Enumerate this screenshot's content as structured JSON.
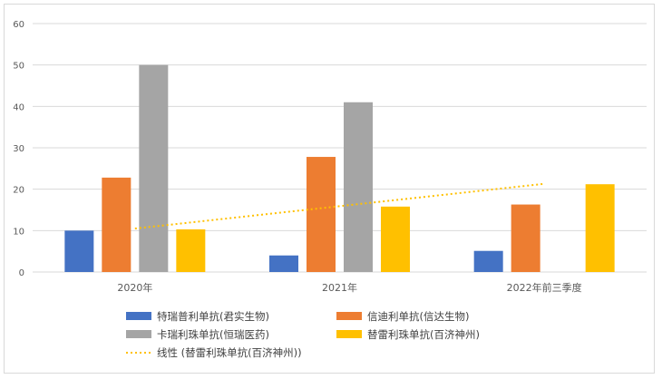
{
  "chart_data": {
    "type": "bar",
    "categories": [
      "2020年",
      "2021年",
      "2022年前三季度"
    ],
    "series": [
      {
        "name": "特瑞普利单抗(君实生物)",
        "color": "#4472C4",
        "values": [
          10.0,
          4.0,
          5.1
        ]
      },
      {
        "name": "信迪利单抗(信达生物)",
        "color": "#ED7D31",
        "values": [
          22.8,
          27.8,
          16.3
        ]
      },
      {
        "name": "卡瑞利珠单抗(恒瑞医药)",
        "color": "#A5A5A5",
        "values": [
          50.0,
          41.0,
          null
        ]
      },
      {
        "name": "替雷利珠单抗(百济神州)",
        "color": "#FFC000",
        "values": [
          10.3,
          15.8,
          21.2
        ]
      }
    ],
    "trendline": {
      "name": "线性 (替雷利珠单抗(百济神州))",
      "color": "#FFC000",
      "style": "dotted",
      "values": [
        10.5,
        15.9,
        21.3
      ]
    },
    "ylim": [
      0,
      60
    ],
    "yticks": [
      0,
      10,
      20,
      30,
      40,
      50,
      60
    ],
    "grid": true,
    "legend_position": "bottom"
  }
}
